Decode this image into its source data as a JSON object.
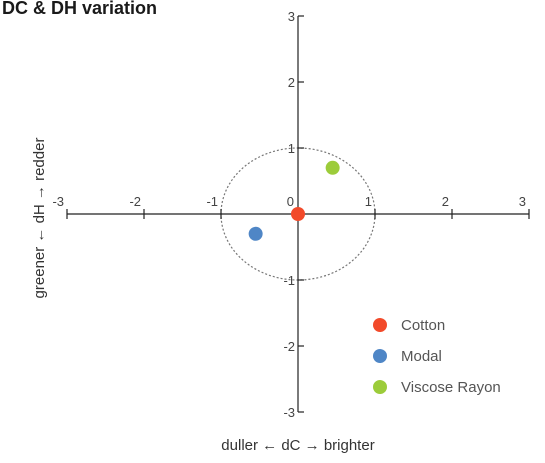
{
  "chart_data": {
    "type": "scatter",
    "title": "DC & DH variation",
    "xlabel": "duller ← dC → brighter",
    "ylabel": "greener ← dH → redder",
    "xlim": [
      -3,
      3
    ],
    "ylim": [
      -3,
      3
    ],
    "x_ticks": [
      "-3",
      "-2",
      "-1",
      "0",
      "1",
      "2",
      "3"
    ],
    "y_ticks": [
      "-3",
      "-2",
      "-1",
      "1",
      "2",
      "3"
    ],
    "reference_circle_radius": 1,
    "legend_position": "bottom-right",
    "series": [
      {
        "name": "Cotton",
        "color": "#f24a2a",
        "x": [
          0
        ],
        "y": [
          0
        ]
      },
      {
        "name": "Modal",
        "color": "#4f86c6",
        "x": [
          -0.55
        ],
        "y": [
          -0.3
        ]
      },
      {
        "name": "Viscose Rayon",
        "color": "#9ccc3a",
        "x": [
          0.45
        ],
        "y": [
          0.7
        ]
      }
    ]
  }
}
